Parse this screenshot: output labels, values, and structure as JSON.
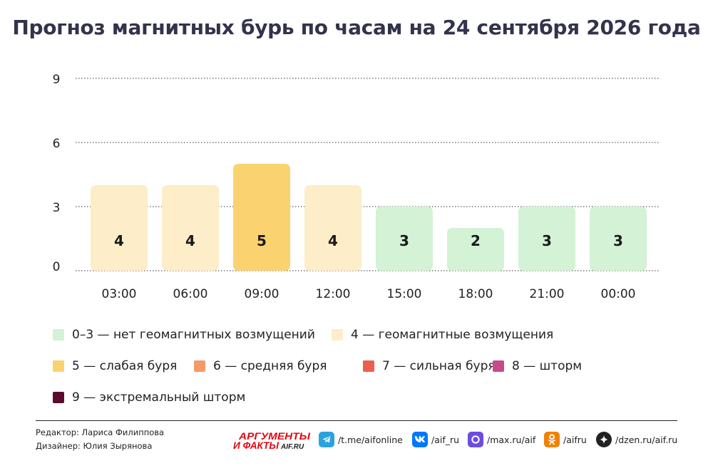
{
  "chart_data": {
    "type": "bar",
    "title": "Прогноз магнитных бурь по часам на 24 сентября 2026 года",
    "categories": [
      "03:00",
      "06:00",
      "09:00",
      "12:00",
      "15:00",
      "18:00",
      "21:00",
      "00:00"
    ],
    "values": [
      4,
      4,
      5,
      4,
      3,
      2,
      3,
      3
    ],
    "ylim": [
      0,
      9
    ],
    "yticks": [
      0,
      3,
      6,
      9
    ],
    "grid": true,
    "legend_placement": "bottom",
    "legend": [
      {
        "label": "0–3 — нет геомагнитных возмущений",
        "color": "#d4f2d5"
      },
      {
        "label": "4 — геомагнитные возмущения",
        "color": "#fdedc8"
      },
      {
        "label": "5 — слабая буря",
        "color": "#fad270"
      },
      {
        "label": "6 — средняя буря",
        "color": "#f59a67"
      },
      {
        "label": "7 — сильная буря",
        "color": "#ec5e50"
      },
      {
        "label": "8 — шторм",
        "color": "#c74a8a"
      },
      {
        "label": "9 — экстремальный шторм",
        "color": "#5a0b2e"
      }
    ]
  },
  "credits": {
    "editor": "Редактор: Лариса Филиппова",
    "designer": "Дизайнер: Юлия Зырянова"
  },
  "brand": {
    "line1": "АРГУМЕНТЫ",
    "line2": "И ФАКТЫ",
    "domain": "AIF.RU",
    "color": "#e30613"
  },
  "social": [
    {
      "icon": "telegram-icon",
      "label": "/t.me/aifonline",
      "color": "#2aa3dc"
    },
    {
      "icon": "vk-icon",
      "label": "/aif_ru",
      "color": "#0077ff"
    },
    {
      "icon": "max-icon",
      "label": "/max.ru/aif",
      "color": "#6c4ce0"
    },
    {
      "icon": "odnoklassniki-icon",
      "label": "/aifru",
      "color": "#ee8208"
    },
    {
      "icon": "dzen-icon",
      "label": "/dzen.ru/aif.ru",
      "color": "#222222"
    }
  ]
}
